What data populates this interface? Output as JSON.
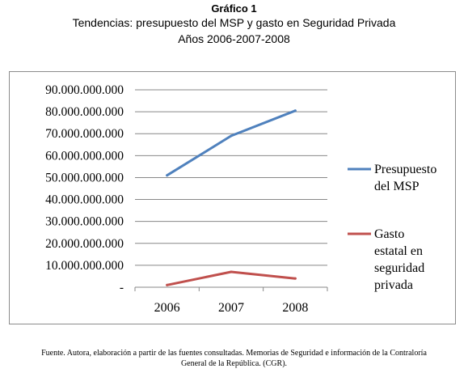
{
  "figure_label": "Gráfico 1",
  "title": "Tendencias: presupuesto del MSP y gasto en Seguridad Privada",
  "subtitle": "Años 2006-2007-2008",
  "source_note": {
    "line1": "Fuente. Autora, elaboración a partir de las fuentes consultadas. Memorias de Seguridad e información de la Contraloría",
    "line2": "General de la República. (CGR)."
  },
  "chart_data": {
    "type": "line",
    "categories": [
      "2006",
      "2007",
      "2008"
    ],
    "series": [
      {
        "name": "Presupuesto del MSP",
        "values": [
          51000000000,
          69000000000,
          80500000000
        ],
        "color": "#4f81bd",
        "legend_lines": [
          "Presupuesto",
          "del MSP"
        ]
      },
      {
        "name": "Gasto estatal en seguridad privada",
        "values": [
          1000000000,
          7000000000,
          4000000000
        ],
        "color": "#c0504d",
        "legend_lines": [
          "Gasto",
          "estatal en",
          "seguridad",
          "privada"
        ]
      }
    ],
    "ylim": [
      0,
      90000000000
    ],
    "ytick_step": 10000000000,
    "ytick_labels": [
      "-",
      "10.000.000.000",
      "20.000.000.000",
      "30.000.000.000",
      "40.000.000.000",
      "50.000.000.000",
      "60.000.000.000",
      "70.000.000.000",
      "80.000.000.000",
      "90.000.000.000"
    ],
    "grid": true,
    "legend_position": "right"
  }
}
